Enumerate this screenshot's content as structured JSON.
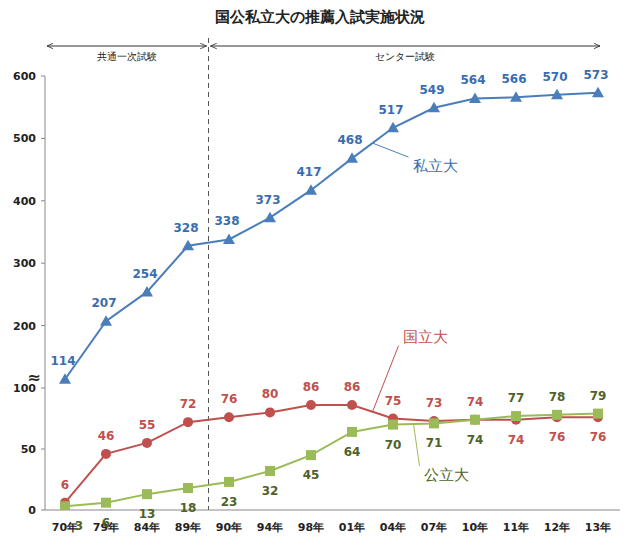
{
  "chart_data": {
    "type": "line",
    "title": "国公私立大の推薦入試実施状況",
    "categories": [
      "70年",
      "79年",
      "84年",
      "89年",
      "90年",
      "94年",
      "98年",
      "01年",
      "04年",
      "07年",
      "10年",
      "11年",
      "12年",
      "13年"
    ],
    "series": [
      {
        "name": "私立大",
        "color": "#4a7ebb",
        "marker": "triangle",
        "values": [
          114,
          207,
          254,
          328,
          338,
          373,
          417,
          468,
          517,
          549,
          564,
          566,
          570,
          573
        ]
      },
      {
        "name": "国立大",
        "color": "#c0504d",
        "marker": "circle",
        "values": [
          6,
          46,
          55,
          72,
          76,
          80,
          86,
          86,
          75,
          73,
          74,
          74,
          76,
          76
        ]
      },
      {
        "name": "公立大",
        "color": "#9bbb59",
        "marker": "square",
        "values": [
          3,
          6,
          13,
          18,
          23,
          32,
          45,
          64,
          70,
          71,
          74,
          77,
          78,
          79
        ]
      }
    ],
    "ylim": [
      0,
      600
    ],
    "yticks": [
      0,
      50,
      100,
      200,
      300,
      400,
      500,
      600
    ],
    "y_break": {
      "value": 100,
      "label": "≈"
    },
    "periods": [
      {
        "label": "共通一次試験",
        "start": "70年",
        "end": "89年"
      },
      {
        "label": "センター試験",
        "start": "90年",
        "end": "13年"
      }
    ],
    "data_labels": true,
    "grid": false
  }
}
